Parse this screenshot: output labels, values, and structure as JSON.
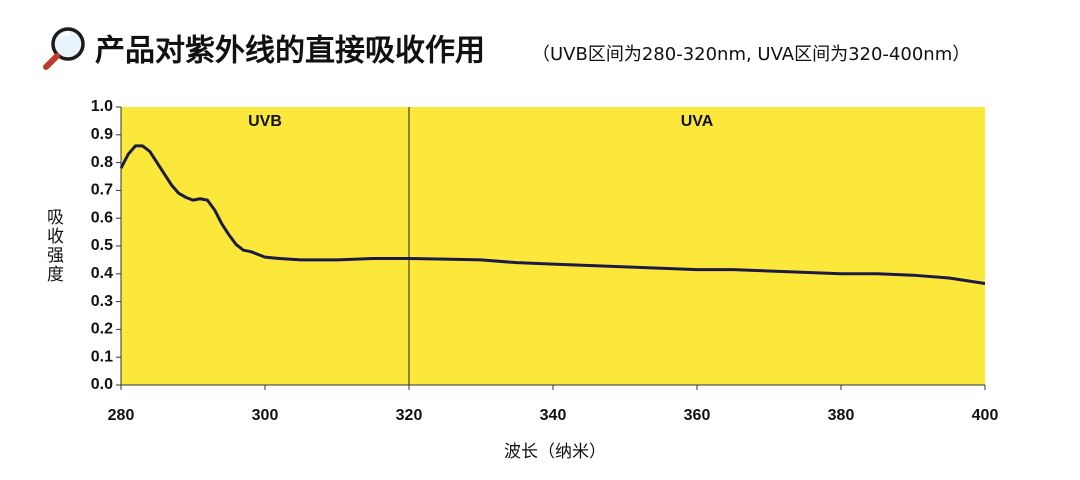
{
  "chart_data": {
    "type": "line",
    "title": "产品对紫外线的直接吸收作用",
    "subtitle": "（UVB区间为280-320nm, UVA区间为320-400nm）",
    "y_label": "吸收强度",
    "x_label": "波长（纳米）",
    "region_labels": [
      "UVB",
      "UVA"
    ],
    "region_boundary": 320,
    "x": [
      280,
      281,
      282,
      283,
      284,
      285,
      286,
      287,
      288,
      289,
      290,
      291,
      292,
      293,
      294,
      295,
      296,
      297,
      298,
      299,
      300,
      302,
      305,
      310,
      315,
      320,
      325,
      330,
      335,
      340,
      345,
      350,
      355,
      360,
      365,
      370,
      375,
      380,
      385,
      390,
      395,
      400
    ],
    "values": [
      0.78,
      0.83,
      0.86,
      0.86,
      0.84,
      0.8,
      0.76,
      0.72,
      0.69,
      0.675,
      0.665,
      0.67,
      0.665,
      0.63,
      0.58,
      0.54,
      0.505,
      0.485,
      0.48,
      0.47,
      0.46,
      0.455,
      0.45,
      0.45,
      0.455,
      0.455,
      0.453,
      0.45,
      0.44,
      0.435,
      0.43,
      0.425,
      0.42,
      0.415,
      0.415,
      0.41,
      0.405,
      0.4,
      0.4,
      0.395,
      0.385,
      0.365
    ],
    "color": "#1b1b45",
    "background": "#fbe83a",
    "xlim": [
      280,
      400
    ],
    "xticks": [
      280,
      300,
      320,
      340,
      360,
      380,
      400
    ],
    "ylim": [
      0,
      1
    ],
    "yticks": [
      {
        "value": 0,
        "label": "0.0"
      },
      0.1,
      0.2,
      0.3,
      0.4,
      0.5,
      0.6,
      0.7,
      0.8,
      0.9,
      {
        "value": 1,
        "label": "1.0"
      }
    ]
  }
}
